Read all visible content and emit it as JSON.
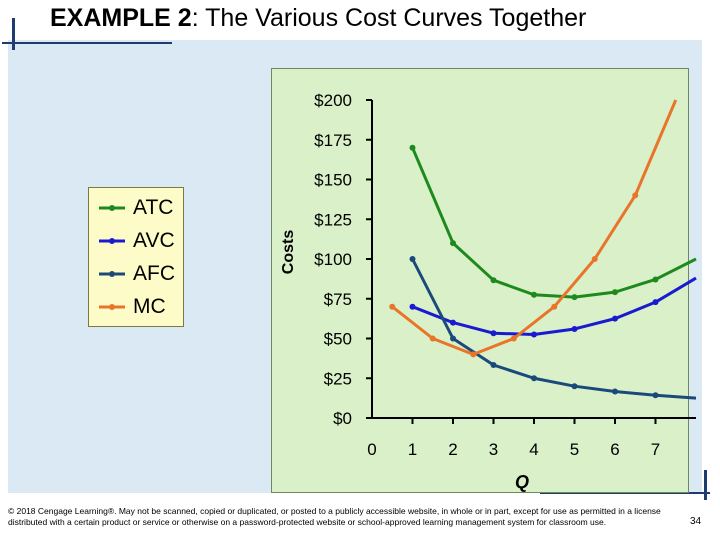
{
  "title": {
    "bold": "EXAMPLE 2",
    "rest": ":  The Various Cost Curves Together"
  },
  "footer": "© 2018 Cengage Learning®. May not be scanned, copied or duplicated, or posted to a publicly accessible website, in whole or in part, except for use as permitted in a license distributed with a certain product or service or otherwise on a password-protected website or school-approved learning management system for classroom use.",
  "page_number": "34",
  "colors": {
    "ATC": "#1e8a1e",
    "AVC": "#1a1ad0",
    "AFC": "#1a4a7a",
    "MC": "#e8752a"
  },
  "chart_data": {
    "type": "line",
    "xlabel": "Q",
    "ylabel": "Costs",
    "x_ticks": [
      "0",
      "1",
      "2",
      "3",
      "4",
      "5",
      "6",
      "7"
    ],
    "y_ticks": [
      "$0",
      "$25",
      "$50",
      "$75",
      "$100",
      "$125",
      "$150",
      "$175",
      "$200"
    ],
    "xlim": [
      0,
      8
    ],
    "ylim": [
      0,
      200
    ],
    "legend_position": "left",
    "grid": false,
    "series": [
      {
        "name": "ATC",
        "points": [
          [
            1,
            170
          ],
          [
            2,
            110
          ],
          [
            3,
            86.67
          ],
          [
            4,
            77.5
          ],
          [
            5,
            76
          ],
          [
            6,
            79.17
          ],
          [
            7,
            87.14
          ],
          [
            8,
            100
          ]
        ]
      },
      {
        "name": "AVC",
        "points": [
          [
            1,
            70
          ],
          [
            2,
            60
          ],
          [
            3,
            53.33
          ],
          [
            4,
            52.5
          ],
          [
            5,
            56
          ],
          [
            6,
            62.5
          ],
          [
            7,
            72.86
          ],
          [
            8,
            88
          ]
        ]
      },
      {
        "name": "AFC",
        "points": [
          [
            1,
            100
          ],
          [
            2,
            50
          ],
          [
            3,
            33.33
          ],
          [
            4,
            25
          ],
          [
            5,
            20
          ],
          [
            6,
            16.67
          ],
          [
            7,
            14.29
          ],
          [
            8,
            12.5
          ]
        ]
      },
      {
        "name": "MC",
        "points": [
          [
            0.5,
            70
          ],
          [
            1.5,
            50
          ],
          [
            2.5,
            40
          ],
          [
            3.5,
            50
          ],
          [
            4.5,
            70
          ],
          [
            5.5,
            100
          ],
          [
            6.5,
            140
          ],
          [
            7.5,
            200
          ]
        ]
      }
    ]
  }
}
